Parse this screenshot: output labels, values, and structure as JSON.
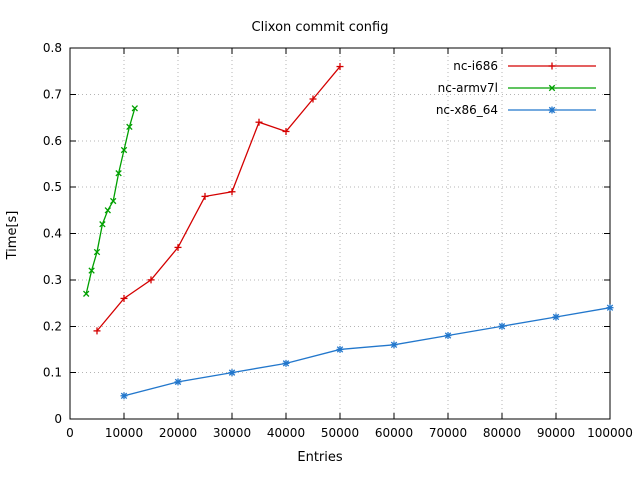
{
  "window": {
    "background": "#ffffff"
  },
  "chart_data": {
    "type": "line",
    "title": "Clixon commit config",
    "xlabel": "Entries",
    "ylabel": "Time[s]",
    "xlim": [
      0,
      100000
    ],
    "ylim": [
      0,
      0.8
    ],
    "x_ticks": [
      0,
      10000,
      20000,
      30000,
      40000,
      50000,
      60000,
      70000,
      80000,
      90000,
      100000
    ],
    "y_ticks": [
      0,
      0.1,
      0.2,
      0.3,
      0.4,
      0.5,
      0.6,
      0.7,
      0.8
    ],
    "grid": true,
    "grid_style": "dotted",
    "legend_position": "top-right-inside",
    "series": [
      {
        "name": "nc-i686",
        "color": "#d40000",
        "marker": "plus",
        "x": [
          5000,
          10000,
          15000,
          20000,
          25000,
          30000,
          35000,
          40000,
          45000,
          50000
        ],
        "y": [
          0.19,
          0.26,
          0.3,
          0.37,
          0.48,
          0.49,
          0.64,
          0.62,
          0.69,
          0.76
        ]
      },
      {
        "name": "nc-armv7l",
        "color": "#00a000",
        "marker": "cross",
        "x": [
          3000,
          4000,
          5000,
          6000,
          7000,
          8000,
          9000,
          10000,
          11000,
          12000
        ],
        "y": [
          0.27,
          0.32,
          0.36,
          0.42,
          0.45,
          0.47,
          0.53,
          0.58,
          0.63,
          0.67
        ]
      },
      {
        "name": "nc-x86_64",
        "color": "#2277cc",
        "marker": "star",
        "x": [
          10000,
          20000,
          30000,
          40000,
          50000,
          60000,
          70000,
          80000,
          90000,
          100000
        ],
        "y": [
          0.05,
          0.08,
          0.1,
          0.12,
          0.15,
          0.16,
          0.18,
          0.2,
          0.22,
          0.24
        ]
      }
    ]
  }
}
